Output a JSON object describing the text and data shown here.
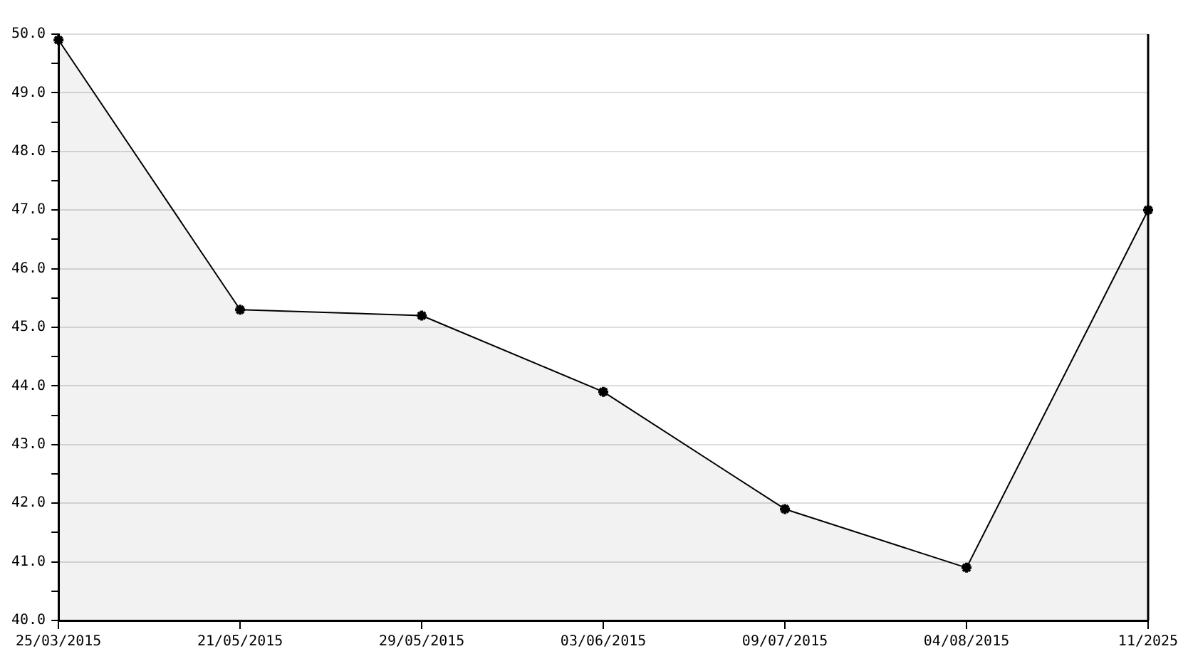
{
  "chart_data": {
    "type": "area",
    "categories": [
      "25/03/2015",
      "21/05/2015",
      "29/05/2015",
      "03/06/2015",
      "09/07/2015",
      "04/08/2015",
      "11/2025"
    ],
    "series": [
      {
        "color": "#000000",
        "values": [
          49.9,
          45.3,
          45.2,
          43.9,
          41.9,
          40.9,
          47.0
        ]
      }
    ],
    "ylim": [
      40,
      50
    ],
    "yticks": [
      {
        "value": 40,
        "label": "40.0"
      },
      {
        "value": 40.5,
        "label": null
      },
      {
        "value": 41,
        "label": "41.0"
      },
      {
        "value": 41.5,
        "label": null
      },
      {
        "value": 42,
        "label": "42.0"
      },
      {
        "value": 42.5,
        "label": null
      },
      {
        "value": 43,
        "label": "43.0"
      },
      {
        "value": 43.5,
        "label": null
      },
      {
        "value": 44,
        "label": "44.0"
      },
      {
        "value": 44.5,
        "label": null
      },
      {
        "value": 45,
        "label": "45.0"
      },
      {
        "value": 45.5,
        "label": null
      },
      {
        "value": 46,
        "label": "46.0"
      },
      {
        "value": 46.5,
        "label": null
      },
      {
        "value": 47,
        "label": "47.0"
      },
      {
        "value": 47.5,
        "label": null
      },
      {
        "value": 48,
        "label": "48.0"
      },
      {
        "value": 48.5,
        "label": null
      },
      {
        "value": 49,
        "label": "49.0"
      },
      {
        "value": 49.5,
        "label": null
      },
      {
        "value": 50,
        "label": "50.0"
      }
    ],
    "grid": "y",
    "legend": false,
    "marker": "cross",
    "line_style": "solid"
  }
}
